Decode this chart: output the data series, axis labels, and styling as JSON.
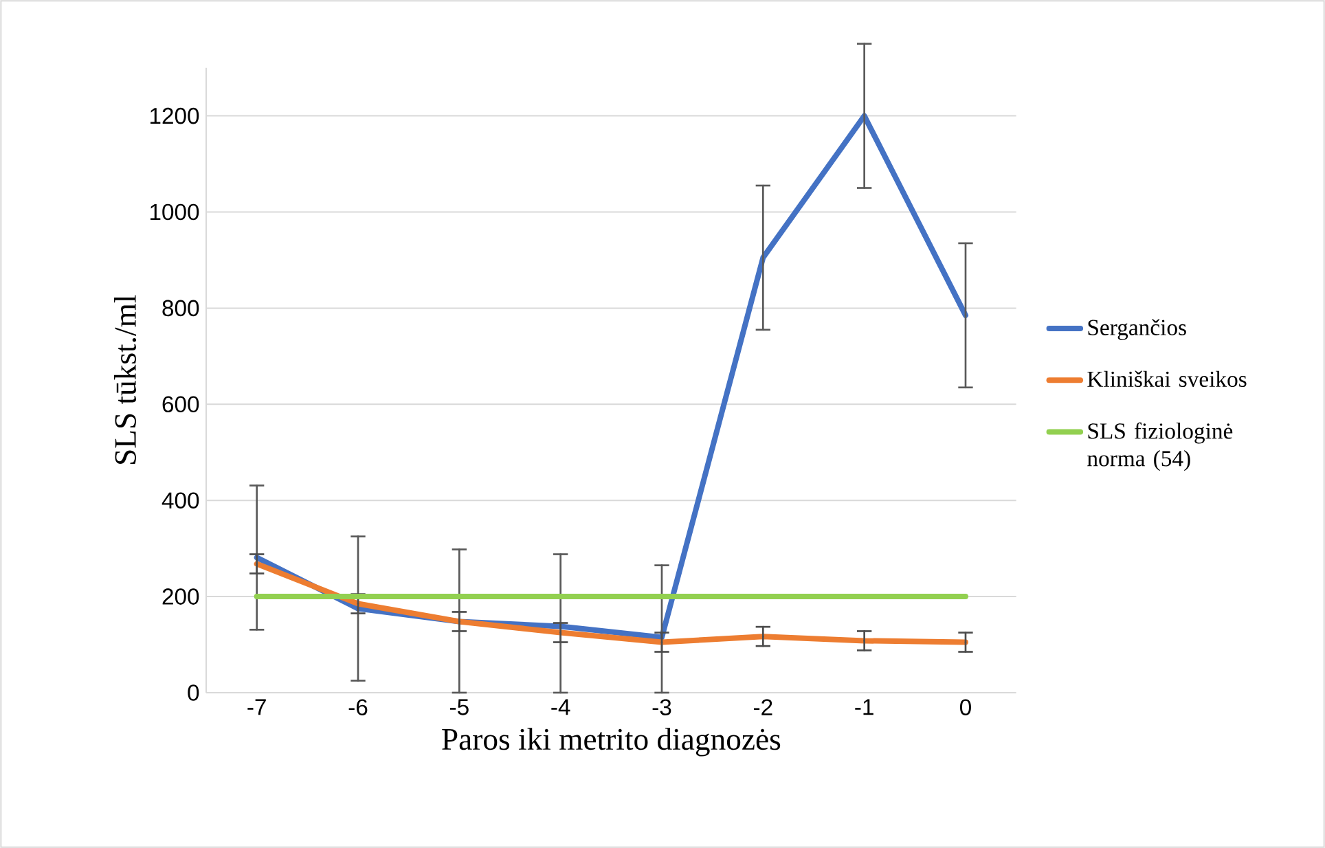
{
  "chart_data": {
    "type": "line",
    "xlabel": "Paros iki metrito diagnozės",
    "ylabel": "SLS tūkst./ml",
    "categories": [
      "-7",
      "-6",
      "-5",
      "-4",
      "-3",
      "-2",
      "-1",
      "0"
    ],
    "ylim": [
      0,
      1300
    ],
    "yticks": [
      0,
      200,
      400,
      600,
      800,
      1000,
      1200
    ],
    "grid": "y",
    "legend": "right",
    "series": [
      {
        "name": "Sergančios",
        "color": "#4472c4",
        "values": [
          281,
          175,
          148,
          138,
          115,
          905,
          1200,
          785
        ],
        "errors": [
          150,
          150,
          [
            0,
            298
          ],
          [
            0,
            288
          ],
          [
            0,
            265
          ],
          150,
          150,
          150
        ]
      },
      {
        "name": "Kliniškai sveikos",
        "color": "#ed7d31",
        "values": [
          268,
          185,
          148,
          125,
          105,
          117,
          108,
          105
        ],
        "errors": [
          20,
          20,
          20,
          20,
          20,
          20,
          20,
          20
        ]
      },
      {
        "name": "SLS fiziologinė norma (54)",
        "color": "#92d050",
        "values": [
          200,
          200,
          200,
          200,
          200,
          200,
          200,
          200
        ]
      }
    ]
  }
}
